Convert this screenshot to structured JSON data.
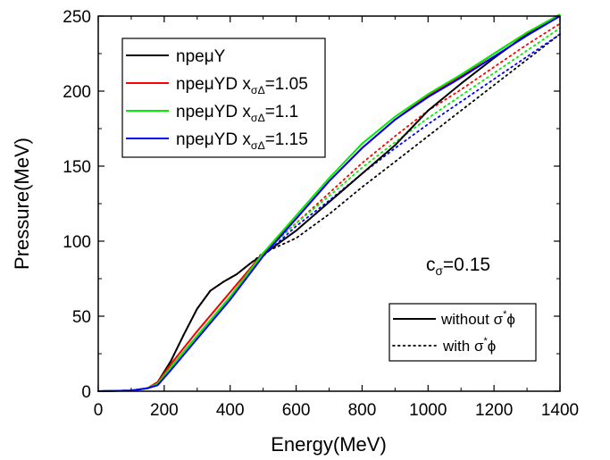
{
  "chart_data": {
    "type": "line",
    "title": "",
    "xlabel": "Energy(MeV)",
    "ylabel": "Pressure(MeV)",
    "xlim": [
      0,
      1400
    ],
    "ylim": [
      0,
      250
    ],
    "x_ticks": [
      0,
      200,
      400,
      600,
      800,
      1000,
      1200,
      1400
    ],
    "y_ticks": [
      0,
      50,
      100,
      150,
      200,
      250
    ],
    "x_tick_labels": [
      "0",
      "200",
      "400",
      "600",
      "800",
      "1000",
      "1200",
      "1400"
    ],
    "y_tick_labels": [
      "0",
      "50",
      "100",
      "150",
      "200",
      "250"
    ],
    "grid": false,
    "legend_placement": "top-left",
    "annotation": {
      "base": "c",
      "sub": "σ",
      "rest": "=0.15"
    },
    "series": [
      {
        "name": "npeμY",
        "legend": {
          "base": "npeμY",
          "sub": "",
          "rest": ""
        },
        "color": "#000000",
        "solid": [
          [
            0,
            0
          ],
          [
            100,
            0.5
          ],
          [
            150,
            2
          ],
          [
            180,
            6
          ],
          [
            220,
            20
          ],
          [
            260,
            38
          ],
          [
            300,
            55
          ],
          [
            340,
            67
          ],
          [
            380,
            73
          ],
          [
            420,
            78
          ],
          [
            460,
            85
          ],
          [
            500,
            91
          ],
          [
            600,
            107
          ],
          [
            700,
            126
          ],
          [
            800,
            145
          ],
          [
            900,
            164
          ],
          [
            1000,
            187
          ],
          [
            1100,
            205
          ],
          [
            1200,
            222
          ],
          [
            1300,
            238
          ],
          [
            1400,
            251
          ]
        ],
        "dotted": [
          [
            0,
            0
          ],
          [
            100,
            0.5
          ],
          [
            150,
            2
          ],
          [
            180,
            6
          ],
          [
            220,
            20
          ],
          [
            260,
            38
          ],
          [
            300,
            55
          ],
          [
            340,
            67
          ],
          [
            380,
            73
          ],
          [
            420,
            78
          ],
          [
            460,
            85
          ],
          [
            500,
            92
          ],
          [
            600,
            102
          ],
          [
            700,
            118
          ],
          [
            800,
            136
          ],
          [
            900,
            153
          ],
          [
            1000,
            170
          ],
          [
            1100,
            187
          ],
          [
            1200,
            204
          ],
          [
            1300,
            221
          ],
          [
            1400,
            238
          ]
        ]
      },
      {
        "name": "npeμYD x_σΔ=1.05",
        "legend": {
          "base": "npeμYD x",
          "sub": "σΔ",
          "rest": "=1.05"
        },
        "color": "#ff0000",
        "solid": [
          [
            0,
            0
          ],
          [
            100,
            0.5
          ],
          [
            150,
            2
          ],
          [
            180,
            6
          ],
          [
            220,
            18
          ],
          [
            300,
            40
          ],
          [
            400,
            66
          ],
          [
            500,
            92
          ],
          [
            600,
            115
          ],
          [
            700,
            140
          ],
          [
            800,
            162
          ],
          [
            900,
            181
          ],
          [
            1000,
            197
          ],
          [
            1100,
            210
          ],
          [
            1200,
            225
          ],
          [
            1300,
            239
          ],
          [
            1400,
            251
          ]
        ],
        "dotted": [
          [
            0,
            0
          ],
          [
            100,
            0.5
          ],
          [
            150,
            2
          ],
          [
            180,
            6
          ],
          [
            220,
            18
          ],
          [
            300,
            40
          ],
          [
            400,
            66
          ],
          [
            500,
            92
          ],
          [
            600,
            112
          ],
          [
            700,
            132
          ],
          [
            800,
            152
          ],
          [
            900,
            170
          ],
          [
            1000,
            187
          ],
          [
            1100,
            201
          ],
          [
            1200,
            216
          ],
          [
            1300,
            231
          ],
          [
            1400,
            245
          ]
        ]
      },
      {
        "name": "npeμYD x_σΔ=1.1",
        "legend": {
          "base": "npeμYD x",
          "sub": "σΔ",
          "rest": "=1.1"
        },
        "color": "#00ee00",
        "solid": [
          [
            0,
            0
          ],
          [
            100,
            0.5
          ],
          [
            150,
            2
          ],
          [
            180,
            5
          ],
          [
            220,
            16
          ],
          [
            300,
            37
          ],
          [
            400,
            63
          ],
          [
            500,
            92
          ],
          [
            600,
            117
          ],
          [
            700,
            142
          ],
          [
            800,
            165
          ],
          [
            900,
            183
          ],
          [
            1000,
            198
          ],
          [
            1100,
            211
          ],
          [
            1200,
            225
          ],
          [
            1300,
            239
          ],
          [
            1400,
            251
          ]
        ],
        "dotted": [
          [
            0,
            0
          ],
          [
            100,
            0.5
          ],
          [
            150,
            2
          ],
          [
            180,
            5
          ],
          [
            220,
            16
          ],
          [
            300,
            37
          ],
          [
            400,
            63
          ],
          [
            500,
            92
          ],
          [
            600,
            112
          ],
          [
            700,
            130
          ],
          [
            800,
            149
          ],
          [
            900,
            166
          ],
          [
            1000,
            182
          ],
          [
            1100,
            197
          ],
          [
            1200,
            212
          ],
          [
            1300,
            227
          ],
          [
            1400,
            242
          ]
        ]
      },
      {
        "name": "npeμYD x_σΔ=1.15",
        "legend": {
          "base": "npeμYD x",
          "sub": "σΔ",
          "rest": "=1.15"
        },
        "color": "#0000ff",
        "solid": [
          [
            0,
            0
          ],
          [
            100,
            0.5
          ],
          [
            150,
            2
          ],
          [
            180,
            4
          ],
          [
            220,
            14
          ],
          [
            300,
            35
          ],
          [
            400,
            61
          ],
          [
            500,
            90
          ],
          [
            600,
            115
          ],
          [
            700,
            140
          ],
          [
            800,
            162
          ],
          [
            900,
            181
          ],
          [
            1000,
            196
          ],
          [
            1100,
            209
          ],
          [
            1200,
            223
          ],
          [
            1300,
            237
          ],
          [
            1400,
            250
          ]
        ],
        "dotted": [
          [
            0,
            0
          ],
          [
            100,
            0.5
          ],
          [
            150,
            2
          ],
          [
            180,
            4
          ],
          [
            220,
            14
          ],
          [
            300,
            35
          ],
          [
            400,
            61
          ],
          [
            500,
            90
          ],
          [
            600,
            110
          ],
          [
            700,
            127
          ],
          [
            800,
            145
          ],
          [
            900,
            162
          ],
          [
            1000,
            178
          ],
          [
            1100,
            193
          ],
          [
            1200,
            208
          ],
          [
            1300,
            223
          ],
          [
            1400,
            238
          ]
        ]
      }
    ],
    "style_legend": {
      "solid_label": "without σ*ϕ",
      "solid": {
        "base": "without σ",
        "sup": "*",
        "rest": "ϕ"
      },
      "dotted_label": "with σ*ϕ",
      "dotted": {
        "base": "with σ",
        "sup": "*",
        "rest": "ϕ"
      }
    }
  }
}
